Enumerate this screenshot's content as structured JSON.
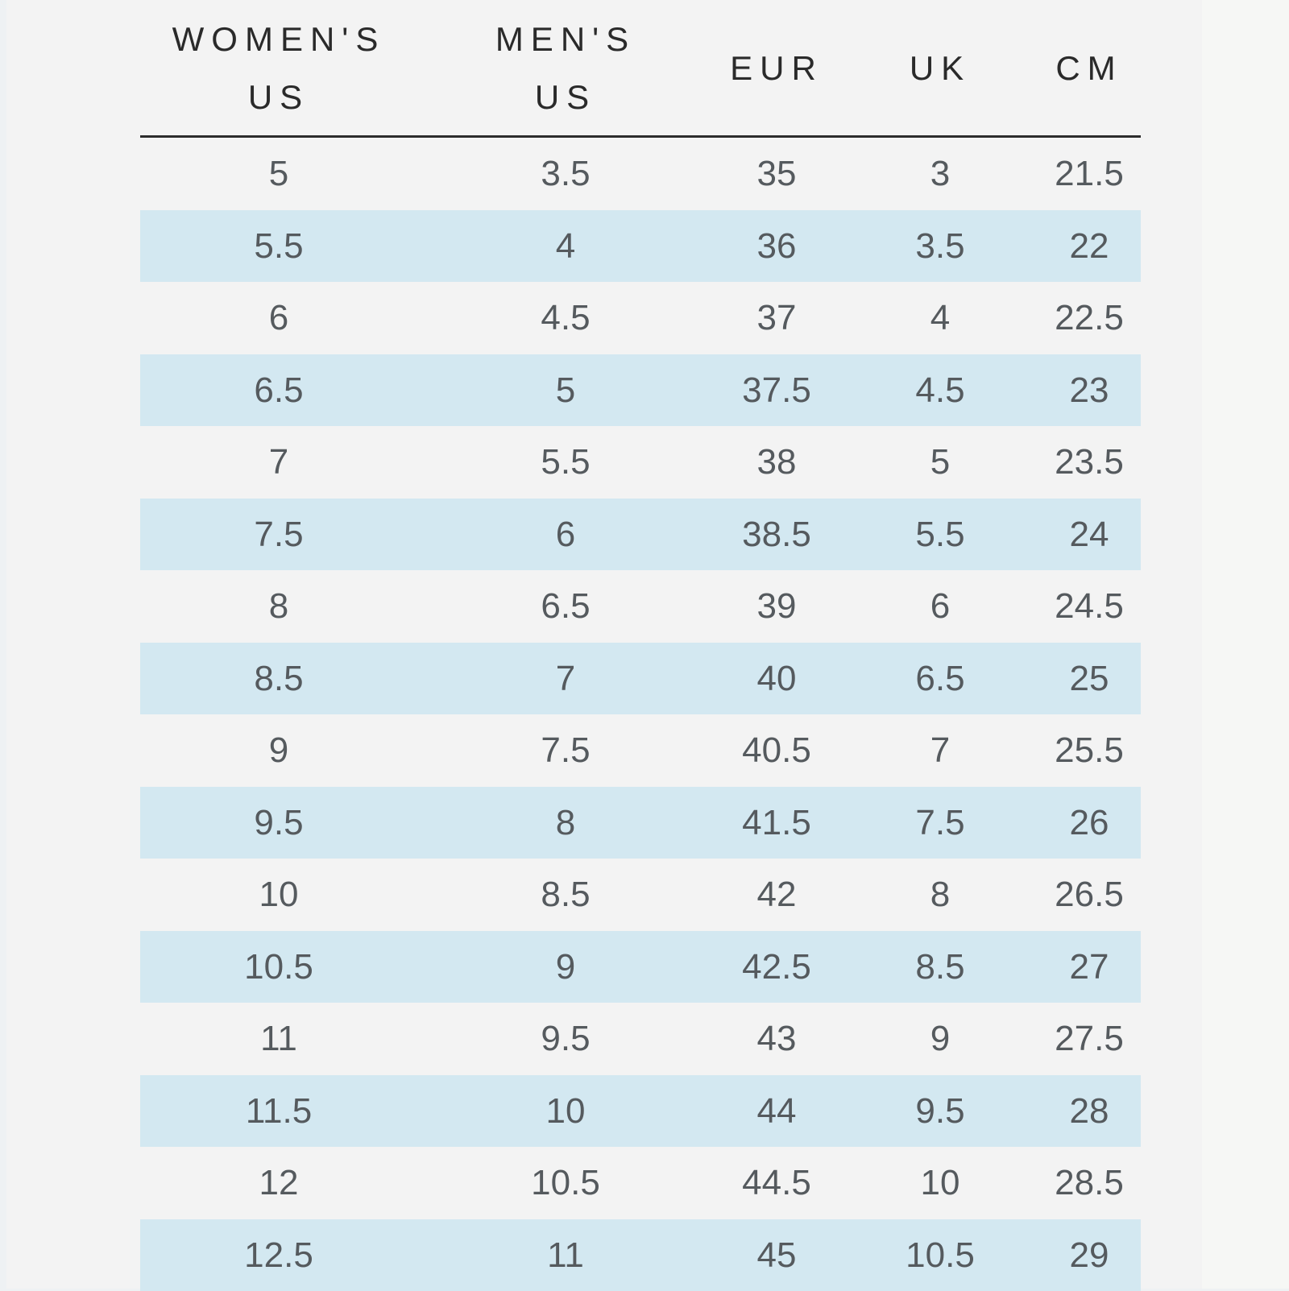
{
  "size_chart": {
    "headers": {
      "womens_us": [
        "WOMEN'S",
        "US"
      ],
      "mens_us": [
        "MEN'S",
        "US"
      ],
      "eur": "EUR",
      "uk": "UK",
      "cm": "CM"
    },
    "rows": [
      [
        "5",
        "3.5",
        "35",
        "3",
        "21.5"
      ],
      [
        "5.5",
        "4",
        "36",
        "3.5",
        "22"
      ],
      [
        "6",
        "4.5",
        "37",
        "4",
        "22.5"
      ],
      [
        "6.5",
        "5",
        "37.5",
        "4.5",
        "23"
      ],
      [
        "7",
        "5.5",
        "38",
        "5",
        "23.5"
      ],
      [
        "7.5",
        "6",
        "38.5",
        "5.5",
        "24"
      ],
      [
        "8",
        "6.5",
        "39",
        "6",
        "24.5"
      ],
      [
        "8.5",
        "7",
        "40",
        "6.5",
        "25"
      ],
      [
        "9",
        "7.5",
        "40.5",
        "7",
        "25.5"
      ],
      [
        "9.5",
        "8",
        "41.5",
        "7.5",
        "26"
      ],
      [
        "10",
        "8.5",
        "42",
        "8",
        "26.5"
      ],
      [
        "10.5",
        "9",
        "42.5",
        "8.5",
        "27"
      ],
      [
        "11",
        "9.5",
        "43",
        "9",
        "27.5"
      ],
      [
        "11.5",
        "10",
        "44",
        "9.5",
        "28"
      ],
      [
        "12",
        "10.5",
        "44.5",
        "10",
        "28.5"
      ],
      [
        "12.5",
        "11",
        "45",
        "10.5",
        "29"
      ]
    ],
    "colors": {
      "shaded_row": "#d3e8f1",
      "background": "#f3f3f3",
      "header_text": "#2a2a2a",
      "cell_text": "#555a5e"
    }
  }
}
